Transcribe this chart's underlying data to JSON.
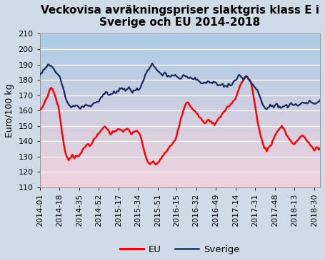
{
  "title": "Veckovisa avräkningspriser slaktgris klass E i\nSverige och EU 2014-2018",
  "ylabel": "Euro/100 kg",
  "background_outer": "#cfdce8",
  "ylim": [
    110,
    210
  ],
  "yticks": [
    110,
    120,
    130,
    140,
    150,
    160,
    170,
    180,
    190,
    200,
    210
  ],
  "xtick_labels": [
    "2014-01",
    "2014-18",
    "2014-35",
    "2014-52",
    "2015-17",
    "2015-34",
    "2015-51",
    "2016-15",
    "2016-32",
    "2016-49",
    "2017-14",
    "2017-31",
    "2017-48",
    "2018-13",
    "2018-30"
  ],
  "xtick_positions": [
    0,
    17,
    34,
    51,
    68,
    85,
    102,
    118,
    135,
    152,
    169,
    186,
    203,
    220,
    237
  ],
  "color_eu": "#ff0000",
  "color_sverige": "#1a2b5e",
  "lw_eu": 1.8,
  "lw_sverige": 1.6,
  "legend_eu": "EU",
  "legend_sverige": "Sverige",
  "title_fontsize": 11,
  "axis_fontsize": 9,
  "tick_fontsize": 8,
  "n_weeks": 243
}
